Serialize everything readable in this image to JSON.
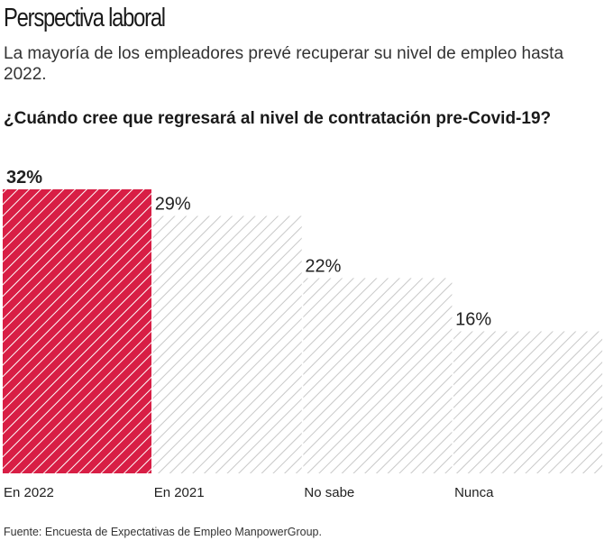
{
  "title": "Perspectiva laboral",
  "subtitle": "La mayoría de los empleadores prevé recuperar su nivel de empleo hasta 2022.",
  "question": "¿Cuándo cree que regresará al nivel de contratación pre-Covid-19?",
  "source": "Fuente: Encuesta de Expectativas de Empleo ManpowerGroup.",
  "chart_data": {
    "type": "bar",
    "categories": [
      "En 2022",
      "En 2021",
      "No sabe",
      "Nunca"
    ],
    "values": [
      32,
      29,
      22,
      16
    ],
    "labels": [
      "32%",
      "29%",
      "22%",
      "16%"
    ],
    "highlight_index": 0,
    "colors": {
      "highlight": "#d81e45",
      "default_stripe": "#c8c8c8"
    },
    "ylim": [
      0,
      32
    ],
    "grid": false
  }
}
